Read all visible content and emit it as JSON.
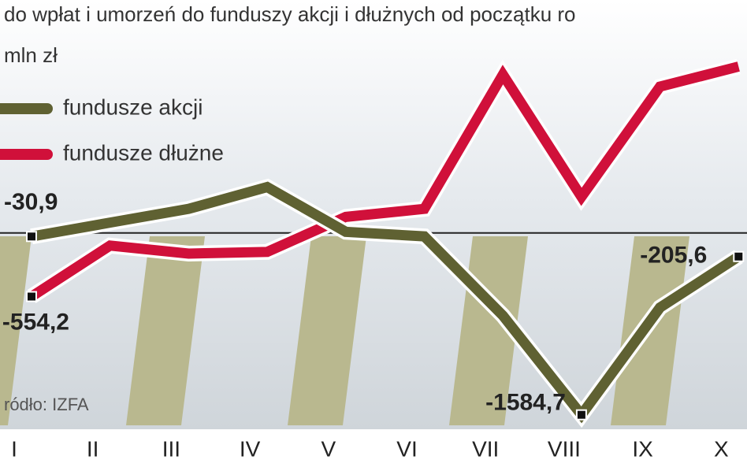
{
  "chart_data": {
    "type": "line",
    "title": "do wpłat i umorzeń do funduszy akcji i dłużnych od początku ro",
    "unit": "mln zł",
    "source": "ródło: IZFA",
    "categories": [
      "I",
      "II",
      "III",
      "IV",
      "V",
      "VI",
      "VII",
      "VIII",
      "IX",
      "X"
    ],
    "ylim": [
      -2040,
      2030
    ],
    "series": [
      {
        "name": "fundusze akcji",
        "color": "#5f6132",
        "values": [
          -30.9,
          90,
          210,
          400,
          10,
          -30,
          -720,
          -1584.7,
          -650,
          -205.6
        ],
        "value_labels": [
          "-30,9",
          null,
          null,
          null,
          null,
          null,
          null,
          "-1584,7",
          null,
          "-205,6"
        ]
      },
      {
        "name": "fundusze dłużne",
        "color": "#d0103a",
        "values": [
          -554.2,
          -110,
          -180,
          -165,
          140,
          210,
          1380,
          315,
          1275,
          1450
        ],
        "value_labels": [
          "-554,2",
          null,
          null,
          null,
          null,
          null,
          null,
          null,
          null,
          null
        ]
      }
    ]
  }
}
